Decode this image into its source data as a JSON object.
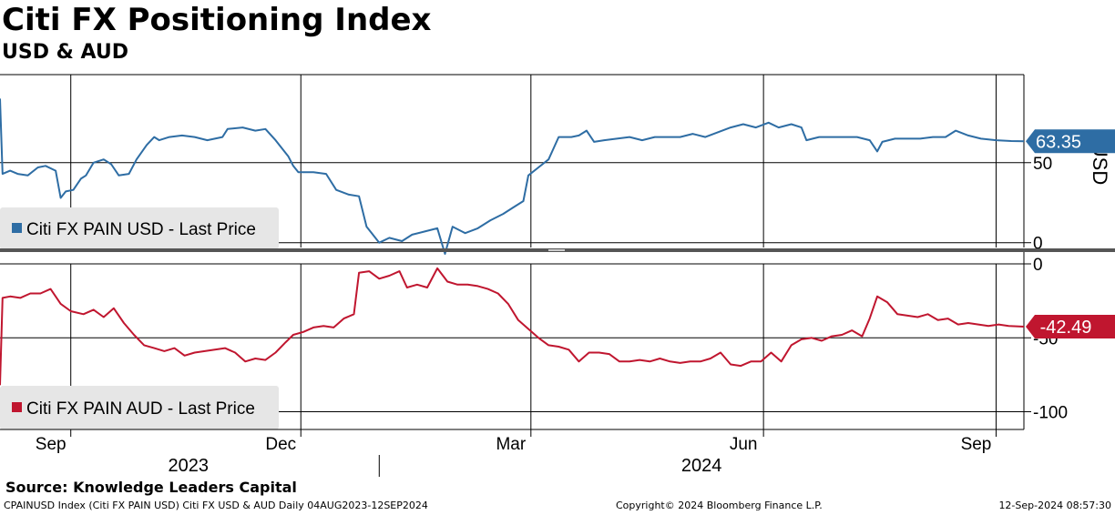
{
  "title": "Citi FX Positioning Index",
  "subtitle": "USD & AUD",
  "source": "Source: Knowledge Leaders Capital",
  "footer": {
    "left": "CPAINUSD Index (Citi FX PAIN USD) Citi FX USD & AUD  Daily 04AUG2023-12SEP2024",
    "center": "Copyright© 2024 Bloomberg Finance L.P.",
    "right": "12-Sep-2024 08:57:30"
  },
  "colors": {
    "usd": "#2e6da4",
    "aud": "#c0162f",
    "legend_bg": "#e6e6e6",
    "separator": "#555555"
  },
  "chart_data": [
    {
      "type": "line",
      "ylabel": "USD",
      "ylim": [
        -3,
        105
      ],
      "yticks": [
        0,
        50
      ],
      "grid": true,
      "legend": "bottom-left",
      "last_value_label": "63.35",
      "series": [
        {
          "name": "Citi FX PAIN USD - Last Price",
          "points": [
            [
              "2023-08-04",
              90
            ],
            [
              "2023-08-05",
              43
            ],
            [
              "2023-08-08",
              45
            ],
            [
              "2023-08-11",
              43
            ],
            [
              "2023-08-15",
              42
            ],
            [
              "2023-08-19",
              47
            ],
            [
              "2023-08-22",
              48
            ],
            [
              "2023-08-26",
              45
            ],
            [
              "2023-08-28",
              28
            ],
            [
              "2023-08-30",
              32
            ],
            [
              "2023-09-02",
              33
            ],
            [
              "2023-09-05",
              40
            ],
            [
              "2023-09-07",
              42
            ],
            [
              "2023-09-10",
              50
            ],
            [
              "2023-09-14",
              52
            ],
            [
              "2023-09-17",
              49
            ],
            [
              "2023-09-20",
              42
            ],
            [
              "2023-09-24",
              43
            ],
            [
              "2023-09-27",
              52
            ],
            [
              "2023-10-01",
              61
            ],
            [
              "2023-10-04",
              66
            ],
            [
              "2023-10-06",
              64
            ],
            [
              "2023-10-10",
              66
            ],
            [
              "2023-10-15",
              67
            ],
            [
              "2023-10-20",
              66
            ],
            [
              "2023-10-25",
              64
            ],
            [
              "2023-10-31",
              66
            ],
            [
              "2023-11-02",
              71
            ],
            [
              "2023-11-08",
              72
            ],
            [
              "2023-11-13",
              70
            ],
            [
              "2023-11-17",
              71
            ],
            [
              "2023-11-21",
              64
            ],
            [
              "2023-11-26",
              54
            ],
            [
              "2023-11-28",
              48
            ],
            [
              "2023-11-30",
              44
            ],
            [
              "2023-12-06",
              44
            ],
            [
              "2023-12-11",
              43
            ],
            [
              "2023-12-15",
              33
            ],
            [
              "2023-12-20",
              30
            ],
            [
              "2023-12-24",
              29
            ],
            [
              "2023-12-27",
              10
            ],
            [
              "2024-01-01",
              0
            ],
            [
              "2024-01-05",
              3
            ],
            [
              "2024-01-10",
              1
            ],
            [
              "2024-01-14",
              5
            ],
            [
              "2024-01-19",
              7
            ],
            [
              "2024-01-24",
              9
            ],
            [
              "2024-01-27",
              -7
            ],
            [
              "2024-01-30",
              10
            ],
            [
              "2024-02-04",
              6
            ],
            [
              "2024-02-09",
              9
            ],
            [
              "2024-02-14",
              14
            ],
            [
              "2024-02-19",
              18
            ],
            [
              "2024-02-23",
              22
            ],
            [
              "2024-02-27",
              26
            ],
            [
              "2024-02-29",
              42
            ],
            [
              "2024-03-04",
              47
            ],
            [
              "2024-03-08",
              52
            ],
            [
              "2024-03-12",
              66
            ],
            [
              "2024-03-17",
              66
            ],
            [
              "2024-03-20",
              67
            ],
            [
              "2024-03-23",
              70
            ],
            [
              "2024-03-26",
              63
            ],
            [
              "2024-03-30",
              64
            ],
            [
              "2024-04-04",
              65
            ],
            [
              "2024-04-09",
              66
            ],
            [
              "2024-04-14",
              64
            ],
            [
              "2024-04-19",
              66
            ],
            [
              "2024-04-24",
              66
            ],
            [
              "2024-04-29",
              66
            ],
            [
              "2024-05-04",
              68
            ],
            [
              "2024-05-09",
              66
            ],
            [
              "2024-05-14",
              69
            ],
            [
              "2024-05-19",
              72
            ],
            [
              "2024-05-24",
              74
            ],
            [
              "2024-05-29",
              72
            ],
            [
              "2024-06-03",
              75
            ],
            [
              "2024-06-07",
              72
            ],
            [
              "2024-06-12",
              74
            ],
            [
              "2024-06-16",
              72
            ],
            [
              "2024-06-18",
              64
            ],
            [
              "2024-06-23",
              66
            ],
            [
              "2024-06-28",
              66
            ],
            [
              "2024-07-03",
              66
            ],
            [
              "2024-07-08",
              66
            ],
            [
              "2024-07-13",
              64
            ],
            [
              "2024-07-16",
              57
            ],
            [
              "2024-07-18",
              63
            ],
            [
              "2024-07-23",
              65
            ],
            [
              "2024-07-28",
              65
            ],
            [
              "2024-08-02",
              65
            ],
            [
              "2024-08-07",
              66
            ],
            [
              "2024-08-12",
              66
            ],
            [
              "2024-08-16",
              70
            ],
            [
              "2024-08-21",
              67
            ],
            [
              "2024-08-26",
              65
            ],
            [
              "2024-09-01",
              64
            ],
            [
              "2024-09-07",
              63.5
            ],
            [
              "2024-09-12",
              63.35
            ]
          ]
        }
      ]
    },
    {
      "type": "line",
      "ylim": [
        -112,
        0
      ],
      "yticks": [
        0,
        -50,
        -100
      ],
      "grid": true,
      "legend": "bottom-left",
      "last_value_label": "-42.49",
      "series": [
        {
          "name": "Citi FX PAIN AUD - Last Price",
          "points": [
            [
              "2023-08-04",
              -82
            ],
            [
              "2023-08-05",
              -23
            ],
            [
              "2023-08-08",
              -22
            ],
            [
              "2023-08-12",
              -23
            ],
            [
              "2023-08-16",
              -20
            ],
            [
              "2023-08-20",
              -20
            ],
            [
              "2023-08-24",
              -17
            ],
            [
              "2023-08-28",
              -27
            ],
            [
              "2023-09-01",
              -32
            ],
            [
              "2023-09-06",
              -34
            ],
            [
              "2023-09-10",
              -31
            ],
            [
              "2023-09-14",
              -36
            ],
            [
              "2023-09-18",
              -30
            ],
            [
              "2023-09-22",
              -40
            ],
            [
              "2023-09-26",
              -48
            ],
            [
              "2023-09-30",
              -55
            ],
            [
              "2023-10-04",
              -57
            ],
            [
              "2023-10-08",
              -59
            ],
            [
              "2023-10-12",
              -57
            ],
            [
              "2023-10-16",
              -62
            ],
            [
              "2023-10-20",
              -60
            ],
            [
              "2023-10-24",
              -59
            ],
            [
              "2023-10-28",
              -58
            ],
            [
              "2023-11-01",
              -57
            ],
            [
              "2023-11-05",
              -60
            ],
            [
              "2023-11-09",
              -66
            ],
            [
              "2023-11-13",
              -64
            ],
            [
              "2023-11-17",
              -65
            ],
            [
              "2023-11-21",
              -60
            ],
            [
              "2023-11-25",
              -53
            ],
            [
              "2023-11-28",
              -48
            ],
            [
              "2023-12-02",
              -46
            ],
            [
              "2023-12-06",
              -43
            ],
            [
              "2023-12-10",
              -42
            ],
            [
              "2023-12-14",
              -43
            ],
            [
              "2023-12-18",
              -37
            ],
            [
              "2023-12-22",
              -34
            ],
            [
              "2023-12-24",
              -6
            ],
            [
              "2023-12-28",
              -5
            ],
            [
              "2024-01-01",
              -10
            ],
            [
              "2024-01-05",
              -8
            ],
            [
              "2024-01-09",
              -5
            ],
            [
              "2024-01-12",
              -16
            ],
            [
              "2024-01-16",
              -14
            ],
            [
              "2024-01-20",
              -16
            ],
            [
              "2024-01-24",
              -3
            ],
            [
              "2024-01-28",
              -12
            ],
            [
              "2024-02-01",
              -14
            ],
            [
              "2024-02-05",
              -14
            ],
            [
              "2024-02-09",
              -15
            ],
            [
              "2024-02-13",
              -17
            ],
            [
              "2024-02-17",
              -20
            ],
            [
              "2024-02-21",
              -27
            ],
            [
              "2024-02-25",
              -38
            ],
            [
              "2024-02-29",
              -44
            ],
            [
              "2024-03-04",
              -50
            ],
            [
              "2024-03-08",
              -55
            ],
            [
              "2024-03-12",
              -56
            ],
            [
              "2024-03-16",
              -58
            ],
            [
              "2024-03-20",
              -66
            ],
            [
              "2024-03-24",
              -60
            ],
            [
              "2024-03-28",
              -60
            ],
            [
              "2024-04-01",
              -61
            ],
            [
              "2024-04-05",
              -66
            ],
            [
              "2024-04-09",
              -66
            ],
            [
              "2024-04-13",
              -65
            ],
            [
              "2024-04-17",
              -66
            ],
            [
              "2024-04-21",
              -64
            ],
            [
              "2024-04-25",
              -66
            ],
            [
              "2024-04-29",
              -67
            ],
            [
              "2024-05-03",
              -66
            ],
            [
              "2024-05-07",
              -66
            ],
            [
              "2024-05-11",
              -64
            ],
            [
              "2024-05-15",
              -60
            ],
            [
              "2024-05-19",
              -68
            ],
            [
              "2024-05-23",
              -69
            ],
            [
              "2024-05-27",
              -66
            ],
            [
              "2024-05-31",
              -66
            ],
            [
              "2024-06-04",
              -60
            ],
            [
              "2024-06-08",
              -66
            ],
            [
              "2024-06-12",
              -55
            ],
            [
              "2024-06-16",
              -51
            ],
            [
              "2024-06-20",
              -50
            ],
            [
              "2024-06-24",
              -52
            ],
            [
              "2024-06-28",
              -49
            ],
            [
              "2024-07-02",
              -48
            ],
            [
              "2024-07-06",
              -45
            ],
            [
              "2024-07-10",
              -49
            ],
            [
              "2024-07-13",
              -37
            ],
            [
              "2024-07-16",
              -22
            ],
            [
              "2024-07-20",
              -26
            ],
            [
              "2024-07-24",
              -34
            ],
            [
              "2024-07-28",
              -35
            ],
            [
              "2024-08-01",
              -36
            ],
            [
              "2024-08-05",
              -34
            ],
            [
              "2024-08-09",
              -38
            ],
            [
              "2024-08-13",
              -37
            ],
            [
              "2024-08-17",
              -41
            ],
            [
              "2024-08-21",
              -40
            ],
            [
              "2024-08-25",
              -41
            ],
            [
              "2024-08-29",
              -42
            ],
            [
              "2024-09-02",
              -41
            ],
            [
              "2024-09-06",
              -42
            ],
            [
              "2024-09-12",
              -42.49
            ]
          ]
        }
      ]
    }
  ],
  "x_axis": {
    "start": "2023-08-04",
    "end": "2024-09-12",
    "ticks": [
      {
        "label": "Sep",
        "date": "2023-09-01"
      },
      {
        "label": "Dec",
        "date": "2023-12-01"
      },
      {
        "label": "Mar",
        "date": "2024-03-01"
      },
      {
        "label": "Jun",
        "date": "2024-06-01"
      },
      {
        "label": "Sep",
        "date": "2024-09-01"
      }
    ],
    "years": [
      {
        "label": "2023",
        "start": "2023-08-04",
        "end": "2023-12-31"
      },
      {
        "label": "2024",
        "start": "2024-01-01",
        "end": "2024-09-12"
      }
    ]
  }
}
